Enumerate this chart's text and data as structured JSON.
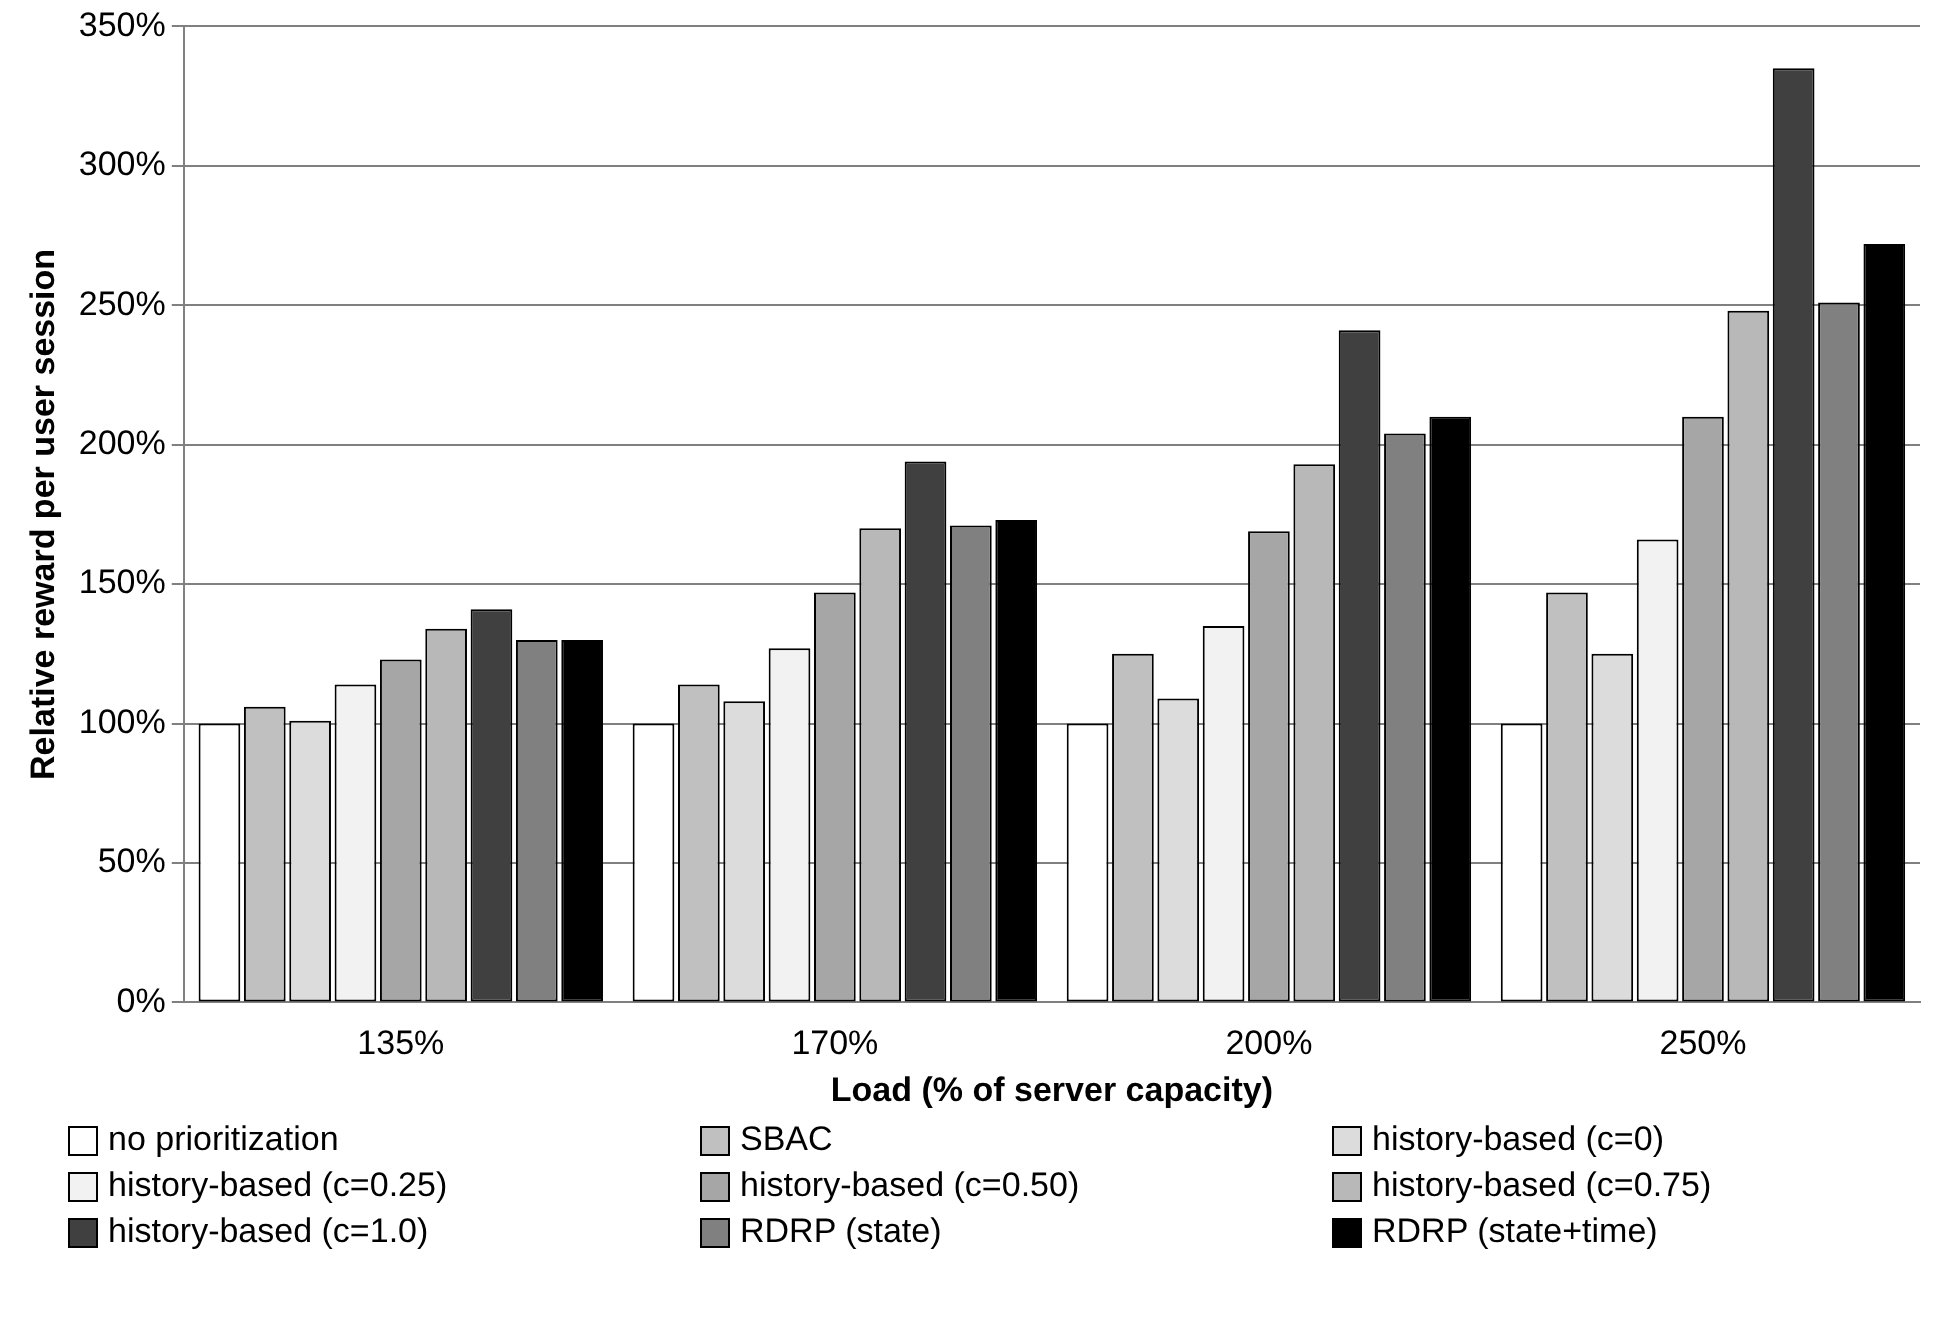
{
  "chart_data": {
    "type": "bar",
    "xlabel": "Load (% of server capacity)",
    "ylabel": "Relative reward per user session",
    "categories": [
      "135%",
      "170%",
      "200%",
      "250%"
    ],
    "series": [
      {
        "name": "no prioritization",
        "color": "#ffffff",
        "values": [
          100,
          100,
          100,
          100
        ]
      },
      {
        "name": "SBAC",
        "color": "#c0c0c0",
        "values": [
          106,
          114,
          125,
          147
        ]
      },
      {
        "name": "history-based (c=0)",
        "color": "#dcdcdc",
        "values": [
          101,
          108,
          109,
          125
        ]
      },
      {
        "name": "history-based (c=0.25)",
        "color": "#f2f2f2",
        "values": [
          114,
          127,
          135,
          166
        ]
      },
      {
        "name": "history-based (c=0.50)",
        "color": "#a6a6a6",
        "values": [
          123,
          147,
          169,
          210
        ]
      },
      {
        "name": "history-based (c=0.75)",
        "color": "#b8b8b8",
        "values": [
          134,
          170,
          193,
          248
        ]
      },
      {
        "name": "history-based (c=1.0)",
        "color": "#404040",
        "values": [
          141,
          194,
          241,
          335
        ]
      },
      {
        "name": "RDRP (state)",
        "color": "#808080",
        "values": [
          130,
          171,
          204,
          251
        ]
      },
      {
        "name": "RDRP (state+time)",
        "color": "#000000",
        "values": [
          130,
          173,
          210,
          272
        ]
      }
    ],
    "ylim": [
      0,
      350
    ],
    "yticks": [
      {
        "value": 0,
        "label": "0%"
      },
      {
        "value": 50,
        "label": "50%"
      },
      {
        "value": 100,
        "label": "100%"
      },
      {
        "value": 150,
        "label": "150%"
      },
      {
        "value": 200,
        "label": "200%"
      },
      {
        "value": 250,
        "label": "250%"
      },
      {
        "value": 300,
        "label": "300%"
      },
      {
        "value": 350,
        "label": "350%"
      }
    ],
    "grid": "y",
    "legend": "bottom"
  }
}
